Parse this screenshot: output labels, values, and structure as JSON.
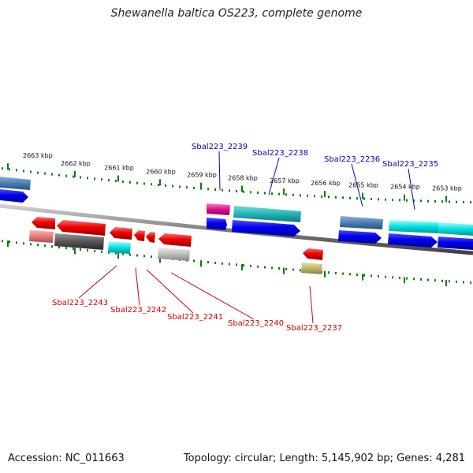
{
  "title": "Shewanella baltica OS223, complete genome",
  "accession": "Accession: NC_011663",
  "topology": "Topology: circular; Length: 5,145,902 bp; Genes: 4,281",
  "colors": {
    "forward_label": "#0000cc",
    "reverse_label": "#cc0000",
    "tick": "#008000",
    "backbone": "#808080"
  },
  "ticks": [
    "2663 kbp",
    "2662 kbp",
    "2661 kbp",
    "2660 kbp",
    "2659 kbp",
    "2658 kbp",
    "2657 kbp",
    "2656 kbp",
    "2655 kbp",
    "2654 kbp",
    "2653 kbp"
  ],
  "forward_labels": [
    "Sbal223_2239",
    "Sbal223_2238",
    "Sbal223_2236",
    "Sbal223_2235"
  ],
  "reverse_labels": [
    "Sbal223_2243",
    "Sbal223_2242",
    "Sbal223_2241",
    "Sbal223_2240",
    "Sbal223_2237"
  ]
}
